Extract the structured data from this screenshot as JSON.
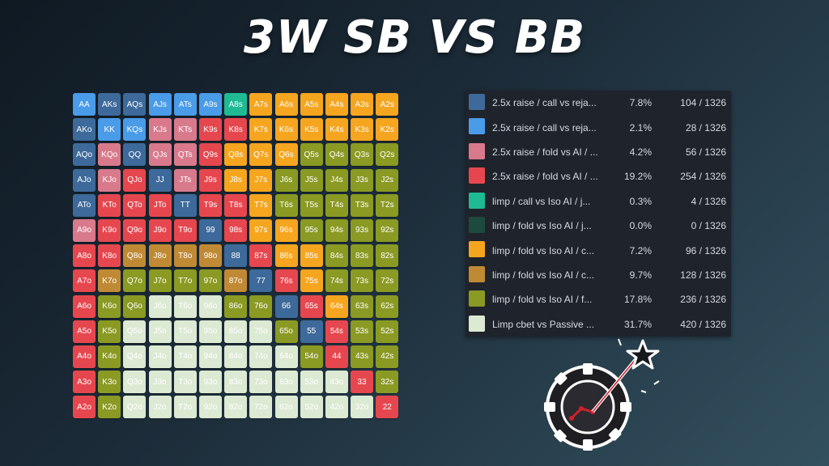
{
  "title": "3W SB VS BB",
  "palette": {
    "darkblue": "#3d6a9a",
    "blue": "#4a9be8",
    "pink": "#d97a8c",
    "red": "#e6474f",
    "teal": "#1fba94",
    "darkgreen": "#1c4a3c",
    "orange": "#f6a51f",
    "brown": "#c08a35",
    "olive": "#8a9a23",
    "pale": "#dce9d3"
  },
  "grid": [
    [
      [
        "AA",
        "blue"
      ],
      [
        "AKs",
        "darkblue"
      ],
      [
        "AQs",
        "darkblue"
      ],
      [
        "AJs",
        "blue"
      ],
      [
        "ATs",
        "blue"
      ],
      [
        "A9s",
        "blue"
      ],
      [
        "A8s",
        "teal"
      ],
      [
        "A7s",
        "orange"
      ],
      [
        "A6s",
        "orange"
      ],
      [
        "A5s",
        "orange"
      ],
      [
        "A4s",
        "orange"
      ],
      [
        "A3s",
        "orange"
      ],
      [
        "A2s",
        "orange"
      ]
    ],
    [
      [
        "AKo",
        "darkblue"
      ],
      [
        "KK",
        "blue"
      ],
      [
        "KQs",
        "blue"
      ],
      [
        "KJs",
        "pink"
      ],
      [
        "KTs",
        "pink"
      ],
      [
        "K9s",
        "red"
      ],
      [
        "K8s",
        "red"
      ],
      [
        "K7s",
        "orange"
      ],
      [
        "K6s",
        "orange"
      ],
      [
        "K5s",
        "orange"
      ],
      [
        "K4s",
        "orange"
      ],
      [
        "K3s",
        "orange"
      ],
      [
        "K2s",
        "orange"
      ]
    ],
    [
      [
        "AQo",
        "darkblue"
      ],
      [
        "KQo",
        "pink"
      ],
      [
        "QQ",
        "darkblue"
      ],
      [
        "QJs",
        "pink"
      ],
      [
        "QTs",
        "pink"
      ],
      [
        "Q9s",
        "red"
      ],
      [
        "Q8s",
        "orange"
      ],
      [
        "Q7s",
        "orange"
      ],
      [
        "Q6s",
        "orange"
      ],
      [
        "Q5s",
        "olive"
      ],
      [
        "Q4s",
        "olive"
      ],
      [
        "Q3s",
        "olive"
      ],
      [
        "Q2s",
        "olive"
      ]
    ],
    [
      [
        "AJo",
        "darkblue"
      ],
      [
        "KJo",
        "pink"
      ],
      [
        "QJo",
        "red"
      ],
      [
        "JJ",
        "darkblue"
      ],
      [
        "JTs",
        "pink"
      ],
      [
        "J9s",
        "red"
      ],
      [
        "J8s",
        "orange"
      ],
      [
        "J7s",
        "orange"
      ],
      [
        "J6s",
        "olive"
      ],
      [
        "J5s",
        "olive"
      ],
      [
        "J4s",
        "olive"
      ],
      [
        "J3s",
        "olive"
      ],
      [
        "J2s",
        "olive"
      ]
    ],
    [
      [
        "ATo",
        "darkblue"
      ],
      [
        "KTo",
        "red"
      ],
      [
        "QTo",
        "red"
      ],
      [
        "JTo",
        "red"
      ],
      [
        "TT",
        "darkblue"
      ],
      [
        "T9s",
        "red"
      ],
      [
        "T8s",
        "red"
      ],
      [
        "T7s",
        "orange"
      ],
      [
        "T6s",
        "olive"
      ],
      [
        "T5s",
        "olive"
      ],
      [
        "T4s",
        "olive"
      ],
      [
        "T3s",
        "olive"
      ],
      [
        "T2s",
        "olive"
      ]
    ],
    [
      [
        "A9o",
        "pink"
      ],
      [
        "K9o",
        "red"
      ],
      [
        "Q9o",
        "red"
      ],
      [
        "J9o",
        "red"
      ],
      [
        "T9o",
        "red"
      ],
      [
        "99",
        "darkblue"
      ],
      [
        "98s",
        "red"
      ],
      [
        "97s",
        "orange"
      ],
      [
        "96s",
        "orange"
      ],
      [
        "95s",
        "olive"
      ],
      [
        "94s",
        "olive"
      ],
      [
        "93s",
        "olive"
      ],
      [
        "92s",
        "olive"
      ]
    ],
    [
      [
        "A8o",
        "red"
      ],
      [
        "K8o",
        "red"
      ],
      [
        "Q8o",
        "brown"
      ],
      [
        "J8o",
        "brown"
      ],
      [
        "T8o",
        "brown"
      ],
      [
        "98o",
        "brown"
      ],
      [
        "88",
        "darkblue"
      ],
      [
        "87s",
        "red"
      ],
      [
        "86s",
        "orange"
      ],
      [
        "85s",
        "orange"
      ],
      [
        "84s",
        "olive"
      ],
      [
        "83s",
        "olive"
      ],
      [
        "82s",
        "olive"
      ]
    ],
    [
      [
        "A7o",
        "red"
      ],
      [
        "K7o",
        "brown"
      ],
      [
        "Q7o",
        "olive"
      ],
      [
        "J7o",
        "olive"
      ],
      [
        "T7o",
        "olive"
      ],
      [
        "97o",
        "olive"
      ],
      [
        "87o",
        "brown"
      ],
      [
        "77",
        "darkblue"
      ],
      [
        "76s",
        "red"
      ],
      [
        "75s",
        "orange"
      ],
      [
        "74s",
        "olive"
      ],
      [
        "73s",
        "olive"
      ],
      [
        "72s",
        "olive"
      ]
    ],
    [
      [
        "A6o",
        "red"
      ],
      [
        "K6o",
        "olive"
      ],
      [
        "Q6o",
        "olive"
      ],
      [
        "J6o",
        "pale"
      ],
      [
        "T6o",
        "pale"
      ],
      [
        "96o",
        "pale"
      ],
      [
        "86o",
        "olive"
      ],
      [
        "76o",
        "olive"
      ],
      [
        "66",
        "darkblue"
      ],
      [
        "65s",
        "red"
      ],
      [
        "64s",
        "orange"
      ],
      [
        "63s",
        "olive"
      ],
      [
        "62s",
        "olive"
      ]
    ],
    [
      [
        "A5o",
        "red"
      ],
      [
        "K5o",
        "olive"
      ],
      [
        "Q5o",
        "pale"
      ],
      [
        "J5o",
        "pale"
      ],
      [
        "T5o",
        "pale"
      ],
      [
        "95o",
        "pale"
      ],
      [
        "85o",
        "pale"
      ],
      [
        "75o",
        "pale"
      ],
      [
        "65o",
        "olive"
      ],
      [
        "55",
        "darkblue"
      ],
      [
        "54s",
        "red"
      ],
      [
        "53s",
        "olive"
      ],
      [
        "52s",
        "olive"
      ]
    ],
    [
      [
        "A4o",
        "red"
      ],
      [
        "K4o",
        "olive"
      ],
      [
        "Q4o",
        "pale"
      ],
      [
        "J4o",
        "pale"
      ],
      [
        "T4o",
        "pale"
      ],
      [
        "94o",
        "pale"
      ],
      [
        "84o",
        "pale"
      ],
      [
        "74o",
        "pale"
      ],
      [
        "64o",
        "pale"
      ],
      [
        "54o",
        "olive"
      ],
      [
        "44",
        "red"
      ],
      [
        "43s",
        "olive"
      ],
      [
        "42s",
        "olive"
      ]
    ],
    [
      [
        "A3o",
        "red"
      ],
      [
        "K3o",
        "olive"
      ],
      [
        "Q3o",
        "pale"
      ],
      [
        "J3o",
        "pale"
      ],
      [
        "T3o",
        "pale"
      ],
      [
        "93o",
        "pale"
      ],
      [
        "83o",
        "pale"
      ],
      [
        "73o",
        "pale"
      ],
      [
        "63o",
        "pale"
      ],
      [
        "53o",
        "pale"
      ],
      [
        "43o",
        "pale"
      ],
      [
        "33",
        "red"
      ],
      [
        "32s",
        "olive"
      ]
    ],
    [
      [
        "A2o",
        "red"
      ],
      [
        "K2o",
        "olive"
      ],
      [
        "Q2o",
        "pale"
      ],
      [
        "J2o",
        "pale"
      ],
      [
        "T2o",
        "pale"
      ],
      [
        "92o",
        "pale"
      ],
      [
        "82o",
        "pale"
      ],
      [
        "72o",
        "pale"
      ],
      [
        "62o",
        "pale"
      ],
      [
        "52o",
        "pale"
      ],
      [
        "42o",
        "pale"
      ],
      [
        "32o",
        "pale"
      ],
      [
        "22",
        "red"
      ]
    ]
  ],
  "legend": [
    {
      "color": "darkblue",
      "label": "2.5x raise / call vs reja...",
      "pct": "7.8%",
      "count": "104 / 1326"
    },
    {
      "color": "blue",
      "label": "2.5x raise / call vs reja...",
      "pct": "2.1%",
      "count": "28 / 1326"
    },
    {
      "color": "pink",
      "label": "2.5x raise / fold vs AI / ...",
      "pct": "4.2%",
      "count": "56 / 1326"
    },
    {
      "color": "red",
      "label": "2.5x raise / fold vs AI / ...",
      "pct": "19.2%",
      "count": "254 / 1326"
    },
    {
      "color": "teal",
      "label": "limp / call vs Iso AI / j...",
      "pct": "0.3%",
      "count": "4 / 1326"
    },
    {
      "color": "darkgreen",
      "label": "limp / fold vs Iso AI / j...",
      "pct": "0.0%",
      "count": "0 / 1326"
    },
    {
      "color": "orange",
      "label": "limp / fold vs Iso AI / c...",
      "pct": "7.2%",
      "count": "96 / 1326"
    },
    {
      "color": "brown",
      "label": "limp / fold vs Iso AI / c...",
      "pct": "9.7%",
      "count": "128 / 1326"
    },
    {
      "color": "olive",
      "label": "limp / fold vs Iso AI / f...",
      "pct": "17.8%",
      "count": "236 / 1326"
    },
    {
      "color": "pale",
      "label": "Limp cbet vs Passive ...",
      "pct": "31.7%",
      "count": "420 / 1326"
    }
  ],
  "logo_icon": "poker-chip-star-icon"
}
